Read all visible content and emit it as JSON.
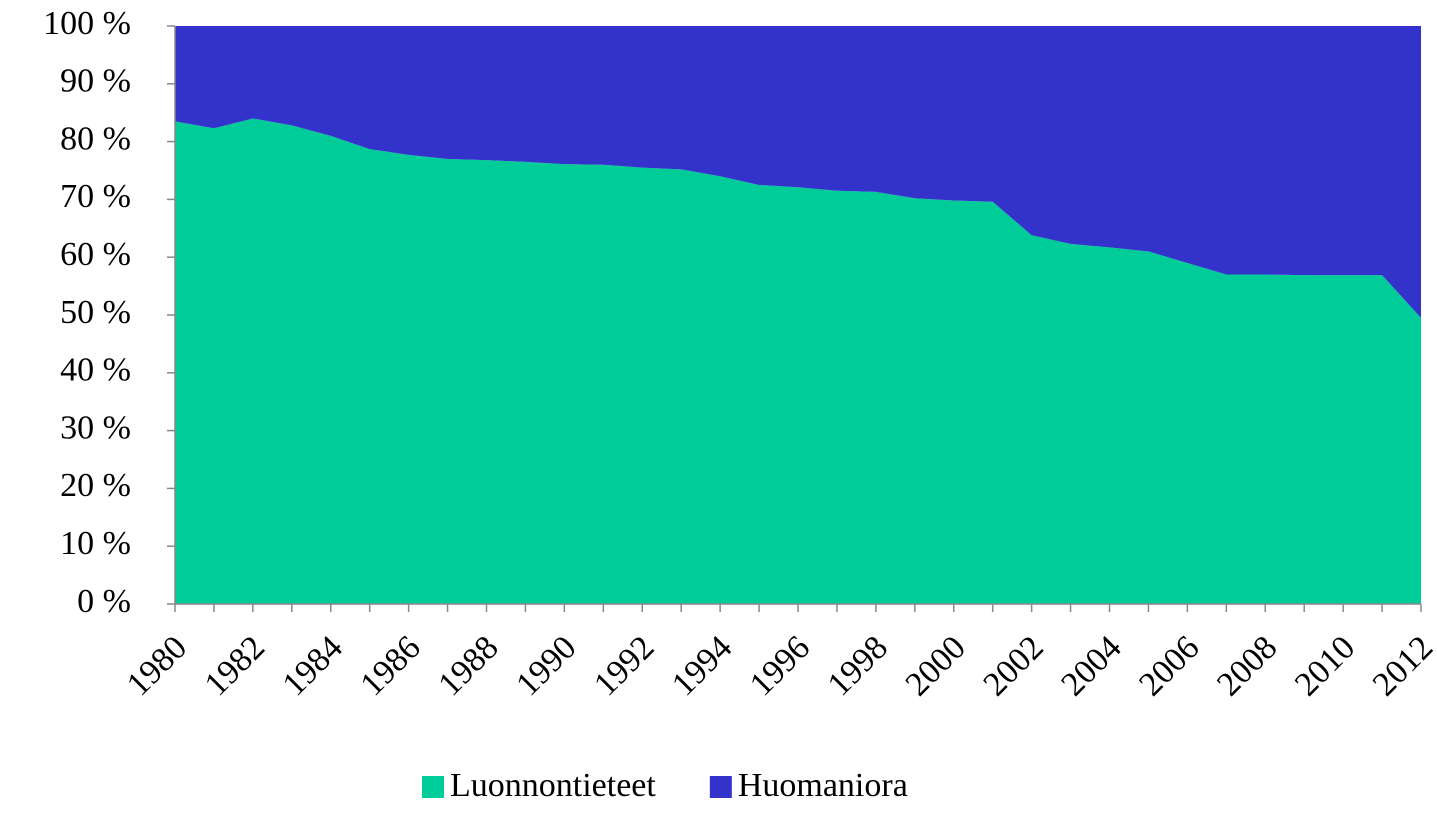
{
  "chart_data": {
    "type": "stacked-area",
    "categories": [
      "1980",
      null,
      "1982",
      null,
      "1984",
      null,
      "1986",
      null,
      "1988",
      null,
      "1990",
      null,
      "1992",
      null,
      "1994",
      null,
      "1996",
      null,
      "1998",
      null,
      "2000",
      null,
      "2002",
      null,
      "2004",
      null,
      "2006",
      null,
      "2008",
      null,
      "2010",
      null,
      "2012"
    ],
    "series": [
      {
        "name": "Luonnontieteet",
        "color": "#00cc99",
        "values": [
          83.5,
          82.3,
          84,
          82.8,
          81,
          78.7,
          77.7,
          77,
          76.8,
          76.5,
          76.1,
          76,
          75.5,
          75.2,
          74,
          72.5,
          72.1,
          71.5,
          71.3,
          70.2,
          69.8,
          69.6,
          63.8,
          62.3,
          61.7,
          61,
          59,
          57,
          57,
          56.9,
          56.9,
          56.9,
          49.5
        ]
      },
      {
        "name": "Huomaniora",
        "color": "#3333cc",
        "values": [
          16.5,
          17.7,
          16,
          17.2,
          19,
          21.3,
          22.3,
          23,
          23.2,
          23.5,
          23.9,
          24,
          24.5,
          24.8,
          26,
          27.5,
          27.9,
          28.5,
          28.7,
          29.8,
          30.2,
          30.4,
          36.2,
          37.7,
          38.3,
          39,
          41,
          43,
          43,
          43.1,
          43.1,
          43.1,
          50.5
        ]
      }
    ],
    "ylim": [
      0,
      100
    ],
    "yticks": [
      {
        "value": 0,
        "label": "0 %"
      },
      {
        "value": 10,
        "label": "10 %"
      },
      {
        "value": 20,
        "label": "20 %"
      },
      {
        "value": 30,
        "label": "30 %"
      },
      {
        "value": 40,
        "label": "40 %"
      },
      {
        "value": 50,
        "label": "50 %"
      },
      {
        "value": 60,
        "label": "60 %"
      },
      {
        "value": 70,
        "label": "70 %"
      },
      {
        "value": 80,
        "label": "80 %"
      },
      {
        "value": 90,
        "label": "90 %"
      },
      {
        "value": 100,
        "label": "100 %"
      }
    ],
    "legend": "bottom"
  }
}
